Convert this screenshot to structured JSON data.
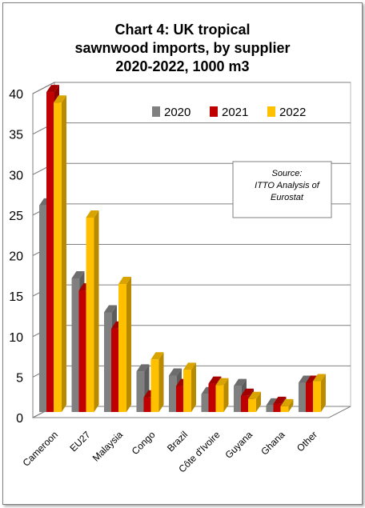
{
  "chart_data": {
    "type": "bar",
    "title_lines": [
      "Chart 4: UK tropical",
      "sawnwood imports, by supplier",
      "2020-2022, 1000 m3"
    ],
    "categories": [
      "Cameroon",
      "EU27",
      "Malaysia",
      "Congo",
      "Brazil",
      "Côte d'Ivoire",
      "Guyana",
      "Ghana",
      "Other"
    ],
    "series": [
      {
        "name": "2020",
        "color": "#808080",
        "values": [
          25.5,
          16.5,
          12.3,
          5.0,
          4.5,
          2.2,
          3.2,
          0.8,
          3.6
        ]
      },
      {
        "name": "2021",
        "color": "#c00000",
        "values": [
          39.5,
          15.0,
          10.3,
          1.8,
          3.2,
          3.5,
          2.0,
          1.0,
          3.6
        ]
      },
      {
        "name": "2022",
        "color": "#ffc000",
        "values": [
          38.2,
          24.0,
          15.8,
          6.5,
          5.2,
          3.3,
          1.6,
          0.7,
          3.8
        ]
      }
    ],
    "y_ticks": [
      "0",
      "5",
      "10",
      "15",
      "20",
      "25",
      "30",
      "35",
      "40"
    ],
    "ylim": [
      0,
      40
    ],
    "grid": true,
    "legend_position": "top-right",
    "source_note": [
      "Source:",
      "ITTO Analysis of",
      "Eurostat"
    ]
  }
}
